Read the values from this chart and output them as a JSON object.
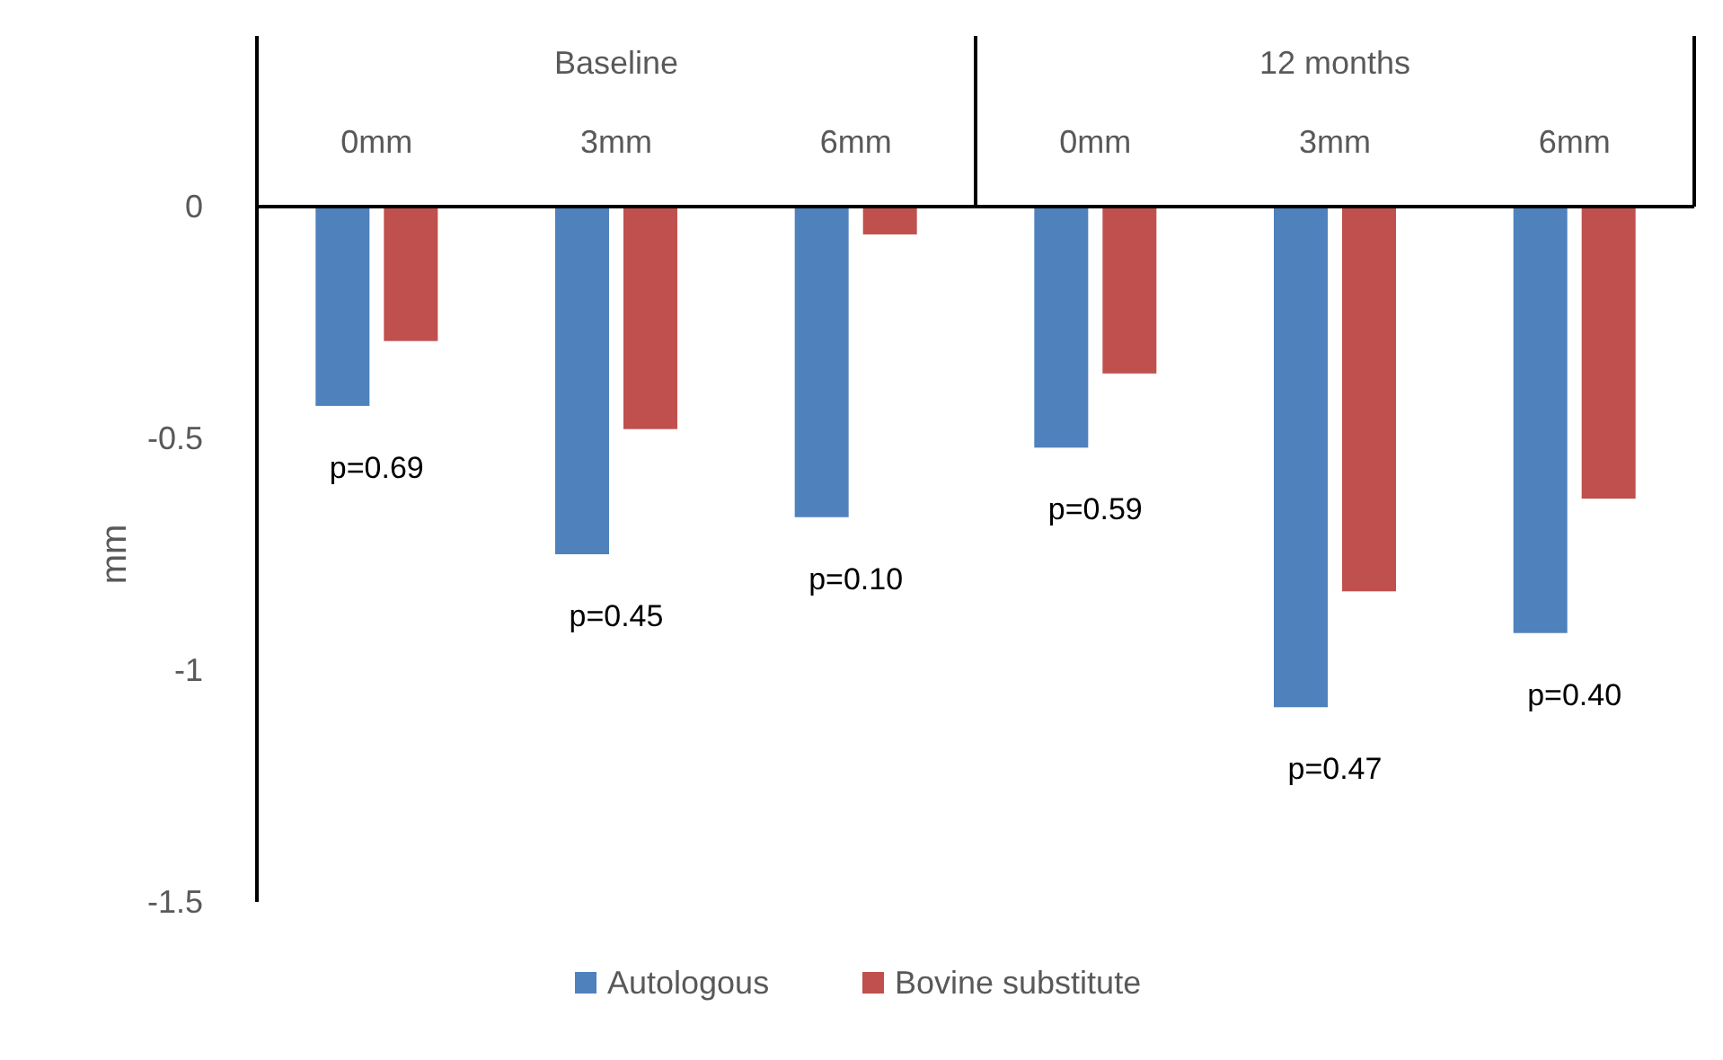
{
  "chart_data": {
    "type": "bar",
    "ylabel": "mm",
    "categories": [
      "0mm",
      "3mm",
      "6mm",
      "0mm",
      "3mm",
      "6mm"
    ],
    "series": [
      {
        "name": "Autologous",
        "color": "#4f81bd",
        "values": [
          -0.43,
          -0.75,
          -0.67,
          -0.52,
          -1.08,
          -0.92
        ]
      },
      {
        "name": "Bovine substitute",
        "color": "#c0504d",
        "values": [
          -0.29,
          -0.48,
          -0.06,
          -0.36,
          -0.83,
          -0.63
        ]
      }
    ],
    "ylim": [
      -1.5,
      0
    ],
    "yticks": [
      -1.5,
      -1,
      -0.5,
      0
    ],
    "grid": false,
    "legend": "bottom",
    "annotations": [
      "Baseline",
      "12 months",
      "p=0.69",
      "p=0.45",
      "p=0.10",
      "p=0.59",
      "p=0.47",
      "p=0.40"
    ]
  }
}
